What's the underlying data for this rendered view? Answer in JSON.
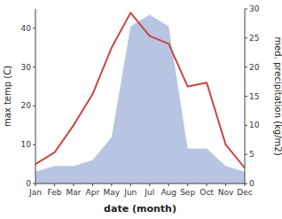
{
  "chart_data": {
    "type": "line",
    "categories": [
      "Jan",
      "Feb",
      "Mar",
      "Apr",
      "May",
      "Jun",
      "Jul",
      "Aug",
      "Sep",
      "Oct",
      "Nov",
      "Dec"
    ],
    "xlabel": "date (month)",
    "ylabel": "max temp (C)",
    "y2label": "med. precipitation (kg/m2)",
    "series": [
      {
        "type": "area",
        "axis": "y2",
        "color": "#aabbdd",
        "values": [
          2,
          3,
          3,
          4,
          8,
          27,
          29,
          27,
          6,
          6,
          3,
          2
        ]
      },
      {
        "type": "line",
        "color": "#cc4444",
        "values": [
          5,
          8,
          15,
          23,
          35,
          44,
          38,
          36,
          25,
          26,
          10,
          4
        ]
      }
    ],
    "ylim": [
      0,
      45
    ],
    "yticks": [
      0,
      10,
      20,
      30,
      40
    ],
    "y2lim": [
      0,
      30
    ],
    "y2ticks": [
      0,
      5,
      10,
      15,
      20,
      25,
      30
    ],
    "grid": false
  }
}
